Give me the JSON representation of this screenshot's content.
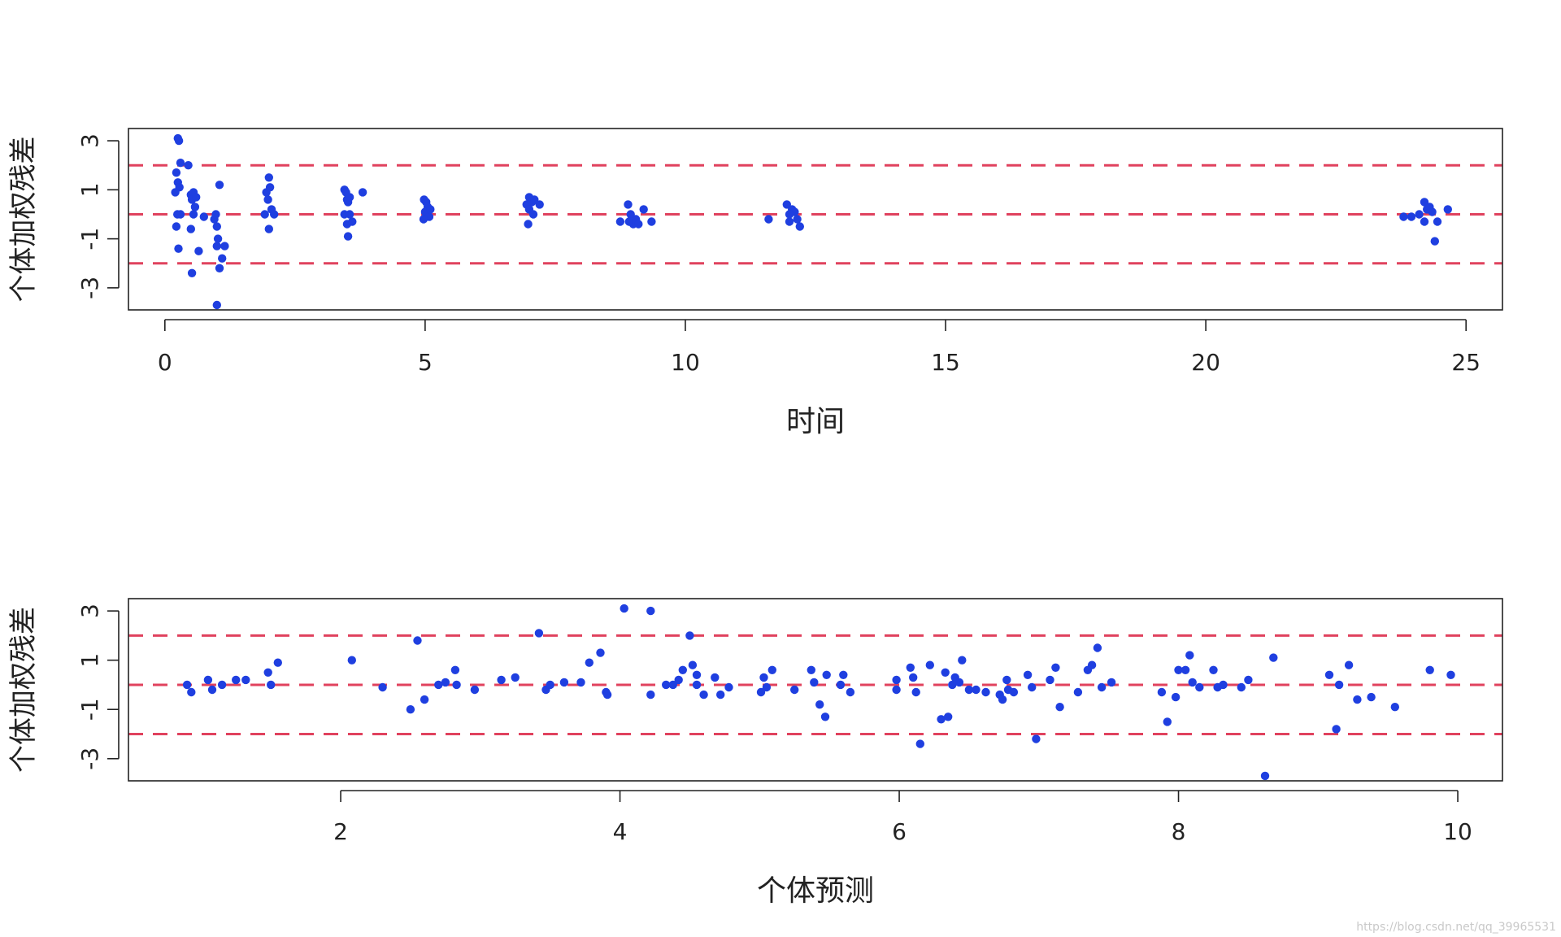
{
  "chart_data": [
    {
      "type": "scatter",
      "xlabel": "时间",
      "ylabel": "个体加权残差",
      "xlim": [
        -0.7,
        25.7
      ],
      "ylim": [
        -3.9,
        3.5
      ],
      "xticks": [
        "0",
        "5",
        "10",
        "15",
        "20",
        "25"
      ],
      "xtick_values": [
        0,
        5,
        10,
        15,
        20,
        25
      ],
      "yticks": [
        "3",
        "1",
        "-1",
        "-3"
      ],
      "ytick_values": [
        3,
        1,
        -1,
        -3
      ],
      "reference_lines": [
        2,
        0,
        -2
      ],
      "colors": {
        "points": "#1f3fe0",
        "reference": "#e0425e"
      },
      "points": [
        [
          0.25,
          3.1
        ],
        [
          0.27,
          3.0
        ],
        [
          0.3,
          2.1
        ],
        [
          0.22,
          1.7
        ],
        [
          0.25,
          1.3
        ],
        [
          0.28,
          1.1
        ],
        [
          0.2,
          0.9
        ],
        [
          0.24,
          0.0
        ],
        [
          0.22,
          -0.5
        ],
        [
          0.26,
          -1.4
        ],
        [
          0.3,
          0.0
        ],
        [
          0.45,
          2.0
        ],
        [
          0.5,
          0.8
        ],
        [
          0.52,
          0.6
        ],
        [
          0.55,
          0.9
        ],
        [
          0.58,
          0.3
        ],
        [
          0.6,
          0.7
        ],
        [
          0.5,
          -0.6
        ],
        [
          0.52,
          -2.4
        ],
        [
          0.55,
          0.0
        ],
        [
          0.65,
          -1.5
        ],
        [
          0.75,
          -0.1
        ],
        [
          0.95,
          -0.2
        ],
        [
          1.0,
          -0.5
        ],
        [
          1.02,
          -1.0
        ],
        [
          1.0,
          -1.3
        ],
        [
          1.05,
          -2.2
        ],
        [
          1.1,
          -1.8
        ],
        [
          1.15,
          -1.3
        ],
        [
          1.05,
          1.2
        ],
        [
          1.0,
          -3.7
        ],
        [
          0.98,
          0.0
        ],
        [
          1.95,
          0.9
        ],
        [
          2.0,
          1.5
        ],
        [
          2.02,
          1.1
        ],
        [
          1.98,
          0.6
        ],
        [
          2.05,
          0.2
        ],
        [
          2.0,
          -0.6
        ],
        [
          2.1,
          0.0
        ],
        [
          1.92,
          0.0
        ],
        [
          3.45,
          1.0
        ],
        [
          3.5,
          0.6
        ],
        [
          3.52,
          0.5
        ],
        [
          3.48,
          0.9
        ],
        [
          3.55,
          0.7
        ],
        [
          3.45,
          0.0
        ],
        [
          3.5,
          -0.4
        ],
        [
          3.52,
          -0.9
        ],
        [
          3.6,
          -0.3
        ],
        [
          3.8,
          0.9
        ],
        [
          3.55,
          0.0
        ],
        [
          4.98,
          0.6
        ],
        [
          5.02,
          0.5
        ],
        [
          5.05,
          0.3
        ],
        [
          5.0,
          0.1
        ],
        [
          5.08,
          -0.1
        ],
        [
          5.1,
          0.2
        ],
        [
          4.97,
          -0.2
        ],
        [
          6.95,
          0.4
        ],
        [
          7.0,
          0.7
        ],
        [
          7.05,
          0.5
        ],
        [
          7.1,
          0.6
        ],
        [
          7.0,
          0.2
        ],
        [
          7.08,
          0.0
        ],
        [
          7.2,
          0.4
        ],
        [
          6.98,
          -0.4
        ],
        [
          8.75,
          -0.3
        ],
        [
          8.9,
          0.4
        ],
        [
          8.95,
          0.0
        ],
        [
          9.0,
          -0.4
        ],
        [
          9.05,
          -0.2
        ],
        [
          9.1,
          -0.4
        ],
        [
          9.2,
          0.2
        ],
        [
          8.92,
          -0.3
        ],
        [
          9.35,
          -0.3
        ],
        [
          11.6,
          -0.2
        ],
        [
          11.95,
          0.4
        ],
        [
          12.0,
          -0.3
        ],
        [
          12.05,
          0.2
        ],
        [
          12.1,
          0.1
        ],
        [
          12.15,
          -0.2
        ],
        [
          12.2,
          -0.5
        ],
        [
          12.0,
          0.0
        ],
        [
          23.8,
          -0.1
        ],
        [
          23.95,
          -0.1
        ],
        [
          24.1,
          0.0
        ],
        [
          24.2,
          0.5
        ],
        [
          24.25,
          0.2
        ],
        [
          24.3,
          0.3
        ],
        [
          24.35,
          0.1
        ],
        [
          24.4,
          -1.1
        ],
        [
          24.45,
          -0.3
        ],
        [
          24.2,
          -0.3
        ],
        [
          24.65,
          0.2
        ]
      ]
    },
    {
      "type": "scatter",
      "xlabel": "个体预测",
      "ylabel": "个体加权残差",
      "xlim": [
        0.48,
        10.32
      ],
      "ylim": [
        -3.9,
        3.5
      ],
      "xticks": [
        "2",
        "4",
        "6",
        "8",
        "10"
      ],
      "xtick_values": [
        2,
        4,
        6,
        8,
        10
      ],
      "yticks": [
        "3",
        "1",
        "-1",
        "-3"
      ],
      "ytick_values": [
        3,
        1,
        -1,
        -3
      ],
      "reference_lines": [
        2,
        0,
        -2
      ],
      "colors": {
        "points": "#1f3fe0",
        "reference": "#e0425e"
      },
      "points": [
        [
          0.9,
          0.0
        ],
        [
          0.93,
          -0.3
        ],
        [
          1.05,
          0.2
        ],
        [
          1.08,
          -0.2
        ],
        [
          1.15,
          0.0
        ],
        [
          1.25,
          0.2
        ],
        [
          1.32,
          0.2
        ],
        [
          1.48,
          0.5
        ],
        [
          1.5,
          0.0
        ],
        [
          1.55,
          0.9
        ],
        [
          2.08,
          1.0
        ],
        [
          2.3,
          -0.1
        ],
        [
          2.5,
          -1.0
        ],
        [
          2.55,
          1.8
        ],
        [
          2.6,
          -0.6
        ],
        [
          2.7,
          0.0
        ],
        [
          2.75,
          0.1
        ],
        [
          2.82,
          0.6
        ],
        [
          2.83,
          0.0
        ],
        [
          2.96,
          -0.2
        ],
        [
          3.15,
          0.2
        ],
        [
          3.25,
          0.3
        ],
        [
          3.42,
          2.1
        ],
        [
          3.47,
          -0.2
        ],
        [
          3.5,
          0.0
        ],
        [
          3.6,
          0.1
        ],
        [
          3.72,
          0.1
        ],
        [
          3.78,
          0.9
        ],
        [
          3.86,
          1.3
        ],
        [
          3.9,
          -0.3
        ],
        [
          3.91,
          -0.4
        ],
        [
          4.03,
          3.1
        ],
        [
          4.22,
          3.0
        ],
        [
          4.22,
          -0.4
        ],
        [
          4.33,
          0.0
        ],
        [
          4.38,
          0.0
        ],
        [
          4.42,
          0.2
        ],
        [
          4.45,
          0.6
        ],
        [
          4.5,
          2.0
        ],
        [
          4.52,
          0.8
        ],
        [
          4.55,
          0.4
        ],
        [
          4.55,
          0.0
        ],
        [
          4.6,
          -0.4
        ],
        [
          4.68,
          0.3
        ],
        [
          4.72,
          -0.4
        ],
        [
          4.78,
          -0.1
        ],
        [
          5.01,
          -0.3
        ],
        [
          5.03,
          0.3
        ],
        [
          5.05,
          -0.1
        ],
        [
          5.09,
          0.6
        ],
        [
          5.25,
          -0.2
        ],
        [
          5.37,
          0.6
        ],
        [
          5.39,
          0.1
        ],
        [
          5.43,
          -0.8
        ],
        [
          5.47,
          -1.3
        ],
        [
          5.48,
          0.4
        ],
        [
          5.58,
          0.0
        ],
        [
          5.6,
          0.4
        ],
        [
          5.65,
          -0.3
        ],
        [
          5.98,
          -0.2
        ],
        [
          5.98,
          0.2
        ],
        [
          6.08,
          0.7
        ],
        [
          6.1,
          0.3
        ],
        [
          6.12,
          -0.3
        ],
        [
          6.15,
          -2.4
        ],
        [
          6.22,
          0.8
        ],
        [
          6.3,
          -1.4
        ],
        [
          6.33,
          0.5
        ],
        [
          6.35,
          -1.3
        ],
        [
          6.38,
          0.0
        ],
        [
          6.4,
          0.3
        ],
        [
          6.43,
          0.1
        ],
        [
          6.45,
          1.0
        ],
        [
          6.5,
          -0.2
        ],
        [
          6.55,
          -0.2
        ],
        [
          6.62,
          -0.3
        ],
        [
          6.72,
          -0.4
        ],
        [
          6.74,
          -0.6
        ],
        [
          6.77,
          0.2
        ],
        [
          6.78,
          -0.2
        ],
        [
          6.82,
          -0.3
        ],
        [
          6.92,
          0.4
        ],
        [
          6.95,
          -0.1
        ],
        [
          6.98,
          -2.2
        ],
        [
          7.08,
          0.2
        ],
        [
          7.12,
          0.7
        ],
        [
          7.15,
          -0.9
        ],
        [
          7.28,
          -0.3
        ],
        [
          7.35,
          0.6
        ],
        [
          7.38,
          0.8
        ],
        [
          7.42,
          1.5
        ],
        [
          7.45,
          -0.1
        ],
        [
          7.52,
          0.1
        ],
        [
          7.88,
          -0.3
        ],
        [
          7.92,
          -1.5
        ],
        [
          7.98,
          -0.5
        ],
        [
          8.0,
          0.6
        ],
        [
          8.05,
          0.6
        ],
        [
          8.08,
          1.2
        ],
        [
          8.1,
          0.1
        ],
        [
          8.15,
          -0.1
        ],
        [
          8.25,
          0.6
        ],
        [
          8.28,
          -0.1
        ],
        [
          8.32,
          0.0
        ],
        [
          8.45,
          -0.1
        ],
        [
          8.5,
          0.2
        ],
        [
          8.62,
          -3.7
        ],
        [
          8.68,
          1.1
        ],
        [
          9.08,
          0.4
        ],
        [
          9.13,
          -1.8
        ],
        [
          9.15,
          0.0
        ],
        [
          9.22,
          0.8
        ],
        [
          9.28,
          -0.6
        ],
        [
          9.38,
          -0.5
        ],
        [
          9.55,
          -0.9
        ],
        [
          9.8,
          0.6
        ],
        [
          9.95,
          0.4
        ]
      ]
    }
  ],
  "watermark": "https://blog.csdn.net/qq_39965531"
}
